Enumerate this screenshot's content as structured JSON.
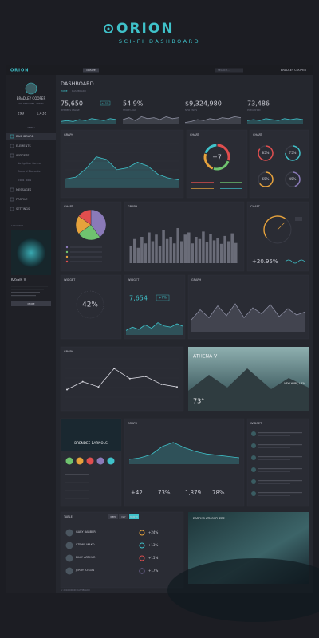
{
  "header": {
    "brand": "ORION",
    "subtitle": "SCI-FI DASHBOARD"
  },
  "topbar": {
    "brand": "ORION",
    "button": "CREATE",
    "search": "SEARCH...",
    "user": "BRADLEY COOPER"
  },
  "sidebar": {
    "name": "BRADLEY COOPER",
    "role": "SR. DESIGNER, ADMIN",
    "counts": [
      "290",
      "1,432"
    ],
    "section": "MENU",
    "menu": [
      "DASHBOARD",
      "ELEMENTS",
      "WIDGETS",
      "Navigation Control",
      "General Elements",
      "Icons Tools",
      "MESSAGES",
      "PROFILE",
      "SETTINGS"
    ],
    "location": "LOCATION",
    "place": "KASSIR V",
    "more": "MORE"
  },
  "page": {
    "title": "DASHBOARD",
    "breadcrumb": [
      "HOME",
      "DASHBOARD"
    ]
  },
  "stats": [
    {
      "value": "75,650",
      "label": "MEMBERS ONLINE",
      "badge": "+15%",
      "trend": [
        3,
        4,
        3,
        5,
        4,
        6,
        5,
        4,
        6,
        5
      ],
      "color": "#3fc1c9"
    },
    {
      "value": "54.9%",
      "label": "STORE LOAD",
      "trend": [
        5,
        7,
        4,
        8,
        6,
        7,
        5,
        8,
        6,
        7
      ],
      "color": "#8d8fa0"
    },
    {
      "value": "$9,324,980",
      "label": "NEW VISITS",
      "trend": [
        2,
        3,
        5,
        4,
        6,
        5,
        7,
        6,
        8,
        7
      ],
      "color": "#8d8fa0"
    },
    {
      "value": "73,486",
      "label": "POPULATION",
      "trend": [
        4,
        5,
        4,
        6,
        5,
        4,
        6,
        5,
        6,
        5
      ],
      "color": "#3fc1c9"
    }
  ],
  "charts": {
    "graph1": {
      "title": "GRAPH",
      "values": [
        20,
        24,
        42,
        68,
        62,
        40,
        44,
        56,
        48,
        30,
        22,
        18
      ],
      "ylim": [
        0,
        100
      ],
      "color": "#3fc1c9"
    },
    "donut": {
      "title": "CHART",
      "center": "+7",
      "values": [
        30,
        25,
        25,
        20
      ],
      "colors": [
        "#e04e4e",
        "#6fc36f",
        "#e6a23c",
        "#3fc1c9"
      ]
    },
    "rings": {
      "title": "CHART",
      "values": [
        85,
        75,
        65,
        45
      ],
      "value_labels": [
        "85%",
        "75%",
        "65%",
        "45%"
      ],
      "colors": [
        "#e04e4e",
        "#3fc1c9",
        "#e6a23c",
        "#8a7ab8"
      ]
    },
    "pie": {
      "title": "CHART",
      "values": [
        40,
        25,
        20,
        15
      ],
      "colors": [
        "#8a7ab8",
        "#6fc36f",
        "#e6a23c",
        "#e04e4e"
      ]
    },
    "bars": {
      "title": "GRAPH",
      "values": [
        40,
        55,
        35,
        60,
        45,
        70,
        50,
        65,
        40,
        75,
        55,
        60,
        45,
        80,
        50,
        65,
        70,
        45,
        60,
        55,
        72,
        48,
        66,
        52,
        58,
        44,
        62,
        50,
        68,
        46
      ],
      "ylim": [
        0,
        100
      ],
      "color": "#6a6c78"
    },
    "gauge": {
      "title": "CHART",
      "value": "+20.95%"
    },
    "percent": {
      "title": "WIDGET",
      "label": "42%"
    },
    "count": {
      "title": "WIDGET",
      "value": "7,654",
      "badge": "+7%",
      "values": [
        20,
        35,
        25,
        45,
        30,
        55,
        40,
        35,
        50,
        38
      ],
      "ylim": [
        0,
        100
      ],
      "color": "#3fc1c9"
    },
    "wave": {
      "title": "GRAPH",
      "values": [
        30,
        55,
        35,
        65,
        40,
        70,
        35,
        60,
        45,
        68,
        38,
        58,
        42,
        50
      ],
      "ylim": [
        0,
        100
      ],
      "color": "#8a8ca0"
    },
    "line": {
      "title": "GRAPH",
      "values": [
        30,
        48,
        36,
        78,
        55,
        60,
        42,
        36
      ],
      "ylim": [
        0,
        100
      ],
      "color": "#d8d8e0"
    },
    "graph2": {
      "title": "GRAPH",
      "values": [
        15,
        20,
        30,
        55,
        68,
        52,
        40,
        32,
        28,
        24,
        20
      ],
      "ylim": [
        0,
        100
      ],
      "color": "#3fc1c9",
      "stats": [
        "+42",
        "73%",
        "1,379",
        "78%"
      ]
    },
    "feed": {
      "title": "WIDGET"
    }
  },
  "weather": {
    "title": "ATHENA V",
    "temp": "73°",
    "city": "NEW YORK, USA"
  },
  "profile": {
    "name": "BRENDEE BARNOLS"
  },
  "table": {
    "title": "TABLE",
    "tabs": [
      "WEEK",
      "DAY",
      "MONTH"
    ],
    "rows": [
      [
        "GARY BARBER",
        "+24%"
      ],
      [
        "STEWY MAKO",
        "+13%"
      ],
      [
        "BILLY ARTHUR",
        "+15%"
      ],
      [
        "JERRY ATSON",
        "+17%"
      ]
    ]
  },
  "earth": {
    "title": "EARTH'S ATMOSPHERE"
  },
  "footer": "© 2016 ORION DASHBOARD"
}
